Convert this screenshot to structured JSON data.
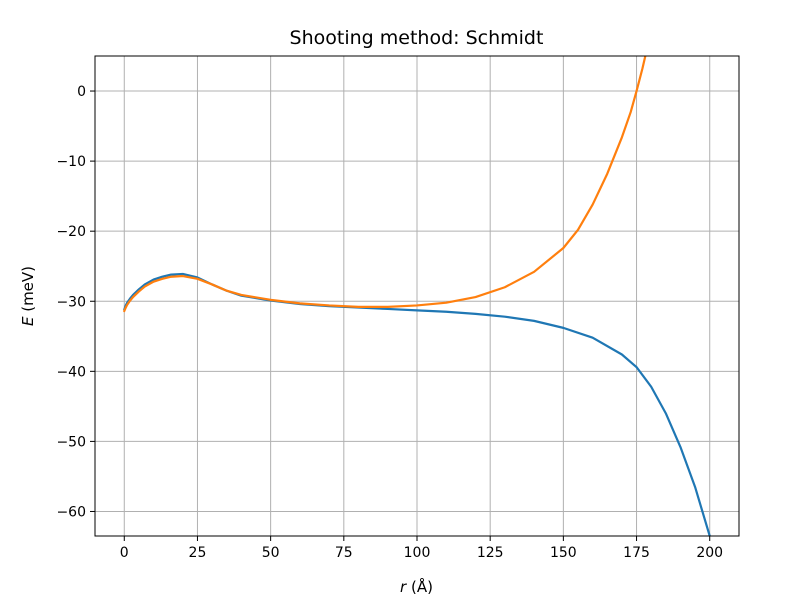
{
  "chart_data": {
    "type": "line",
    "title": "Shooting method: Schmidt",
    "xlabel": {
      "var": "r",
      "unit": " (Å)"
    },
    "ylabel": {
      "var": "E",
      "unit": " (meV)"
    },
    "xlim": [
      -10,
      210
    ],
    "ylim": [
      -63.5,
      5
    ],
    "xticks": [
      0,
      25,
      50,
      75,
      100,
      125,
      150,
      175,
      200
    ],
    "yticks": [
      0,
      -10,
      -20,
      -30,
      -40,
      -50,
      -60
    ],
    "xtick_labels": [
      "0",
      "25",
      "50",
      "75",
      "100",
      "125",
      "150",
      "175",
      "200"
    ],
    "ytick_labels": [
      "0",
      "−10",
      "−20",
      "−30",
      "−40",
      "−50",
      "−60"
    ],
    "grid": true,
    "series": [
      {
        "color": "#1f77b4",
        "x": [
          0,
          0.5,
          1,
          2,
          3,
          5,
          7,
          10,
          13,
          16,
          20,
          25,
          30,
          35,
          40,
          50,
          60,
          70,
          80,
          90,
          100,
          110,
          120,
          130,
          140,
          150,
          160,
          170,
          175,
          180,
          185,
          190,
          195,
          200
        ],
        "y": [
          -31.2,
          -30.6,
          -30.2,
          -29.6,
          -29.1,
          -28.3,
          -27.6,
          -26.9,
          -26.5,
          -26.2,
          -26.1,
          -26.6,
          -27.6,
          -28.5,
          -29.2,
          -29.9,
          -30.4,
          -30.7,
          -30.9,
          -31.1,
          -31.3,
          -31.5,
          -31.8,
          -32.2,
          -32.8,
          -33.8,
          -35.2,
          -37.6,
          -39.4,
          -42.2,
          -46.0,
          -50.8,
          -56.5,
          -63.5
        ]
      },
      {
        "color": "#ff7f0e",
        "x": [
          0,
          0.5,
          1,
          2,
          3,
          5,
          7,
          10,
          13,
          16,
          20,
          25,
          30,
          35,
          40,
          50,
          60,
          70,
          80,
          90,
          100,
          110,
          120,
          130,
          140,
          150,
          155,
          160,
          165,
          170,
          173,
          175,
          177,
          178
        ],
        "y": [
          -31.4,
          -30.9,
          -30.5,
          -29.9,
          -29.4,
          -28.6,
          -27.9,
          -27.2,
          -26.8,
          -26.5,
          -26.4,
          -26.8,
          -27.6,
          -28.5,
          -29.1,
          -29.8,
          -30.3,
          -30.6,
          -30.8,
          -30.8,
          -30.6,
          -30.2,
          -29.4,
          -28.0,
          -25.8,
          -22.4,
          -19.8,
          -16.2,
          -11.8,
          -6.6,
          -3.0,
          0.0,
          3.2,
          5.0
        ]
      }
    ]
  }
}
